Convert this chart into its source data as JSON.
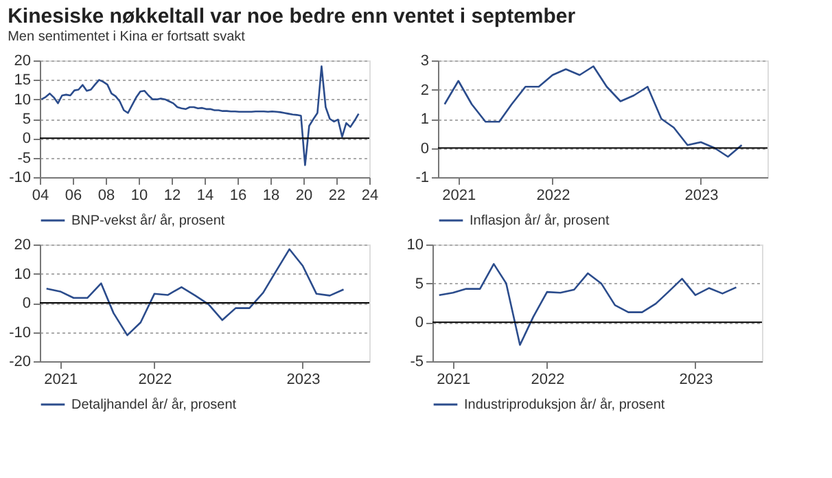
{
  "chart_data": [
    {
      "type": "line",
      "title": "Kinesiske nøkkeltall var noe bedre enn ventet i september",
      "subtitle": "Men sentimentet i Kina er fortsatt svakt",
      "x": [
        2004.1,
        2004.35,
        2004.6,
        2004.85,
        2005.1,
        2005.35,
        2005.6,
        2005.85,
        2006.1,
        2006.35,
        2006.6,
        2006.85,
        2007.1,
        2007.35,
        2007.6,
        2007.85,
        2008.1,
        2008.35,
        2008.6,
        2008.85,
        2009.1,
        2009.35,
        2009.6,
        2009.85,
        2010.1,
        2010.35,
        2010.6,
        2010.85,
        2011.1,
        2011.35,
        2011.6,
        2011.85,
        2012.1,
        2012.35,
        2012.6,
        2012.85,
        2013.1,
        2013.35,
        2013.6,
        2013.85,
        2014.1,
        2014.35,
        2014.6,
        2014.85,
        2015.1,
        2015.35,
        2015.6,
        2015.85,
        2016.1,
        2016.35,
        2016.6,
        2016.85,
        2017.1,
        2017.35,
        2017.6,
        2017.85,
        2018.1,
        2018.35,
        2018.6,
        2018.85,
        2019.1,
        2019.35,
        2019.6,
        2019.85,
        2020.1,
        2020.35,
        2020.6,
        2020.85,
        2021.1,
        2021.35,
        2021.6,
        2021.85,
        2022.1,
        2022.35,
        2022.6,
        2022.85,
        2023.1,
        2023.35
      ],
      "series": [
        {
          "name": "BNP-vekst år/ år, prosent",
          "color": "#2b4c8c",
          "values": [
            10.0,
            10.6,
            11.5,
            10.5,
            9.0,
            11.0,
            11.2,
            11.0,
            12.3,
            12.5,
            13.7,
            12.2,
            12.5,
            13.8,
            15.0,
            14.5,
            13.8,
            11.5,
            10.8,
            9.5,
            7.2,
            6.5,
            8.5,
            10.5,
            12.0,
            12.2,
            11.0,
            10.0,
            10.0,
            10.2,
            10.0,
            9.5,
            9.0,
            8.0,
            7.7,
            7.5,
            8.0,
            8.0,
            7.7,
            7.8,
            7.5,
            7.5,
            7.2,
            7.2,
            7.0,
            7.0,
            6.9,
            6.9,
            6.8,
            6.8,
            6.8,
            6.8,
            6.9,
            6.9,
            6.9,
            6.8,
            6.9,
            6.8,
            6.7,
            6.5,
            6.3,
            6.1,
            6.0,
            5.8,
            -6.9,
            3.2,
            4.9,
            6.5,
            18.5,
            8.0,
            5.0,
            4.3,
            4.8,
            0.4,
            3.9,
            2.9,
            4.5,
            6.3
          ]
        }
      ],
      "xlim": [
        2004,
        2024
      ],
      "xticks": [
        {
          "value": 2004,
          "label": "04"
        },
        {
          "value": 2006,
          "label": "06"
        },
        {
          "value": 2008,
          "label": "08"
        },
        {
          "value": 2010,
          "label": "10"
        },
        {
          "value": 2012,
          "label": "12"
        },
        {
          "value": 2014,
          "label": "14"
        },
        {
          "value": 2016,
          "label": "16"
        },
        {
          "value": 2018,
          "label": "18"
        },
        {
          "value": 2020,
          "label": "20"
        },
        {
          "value": 2022,
          "label": "22"
        },
        {
          "value": 2024,
          "label": "24"
        }
      ],
      "ylim": [
        -10,
        20
      ],
      "yticks": [
        -10,
        -5,
        0,
        5,
        10,
        15,
        20
      ],
      "grid": "y",
      "legend": "bottom",
      "line_style": "solid",
      "ref_lines": [
        {
          "axis": "y",
          "value": 0,
          "color": "#000000"
        }
      ]
    },
    {
      "type": "line",
      "x": [
        "2021-10",
        "2021-11",
        "2021-12",
        "2022-01",
        "2022-02",
        "2022-03",
        "2022-04",
        "2022-05",
        "2022-06",
        "2022-07",
        "2022-08",
        "2022-09",
        "2022-10",
        "2022-11",
        "2022-12",
        "2023-01",
        "2023-02",
        "2023-03",
        "2023-04",
        "2023-05",
        "2023-06",
        "2023-07",
        "2023-08"
      ],
      "series": [
        {
          "name": "Inflasjon år/ år, prosent",
          "color": "#2b4c8c",
          "values": [
            1.5,
            2.3,
            1.5,
            0.9,
            0.9,
            1.5,
            2.1,
            2.1,
            2.5,
            2.7,
            2.5,
            2.8,
            2.1,
            1.6,
            1.8,
            2.1,
            1.0,
            0.7,
            0.1,
            0.2,
            0.0,
            -0.3,
            0.1
          ]
        }
      ],
      "xlim": [
        "2021-09-16",
        "2023-09-28"
      ],
      "xticks": [
        {
          "value": "2021-11",
          "label": "2021"
        },
        {
          "value": "2022-06",
          "label": "2022"
        },
        {
          "value": "2023-05",
          "label": "2023"
        }
      ],
      "ylim": [
        -1,
        3
      ],
      "yticks": [
        -1,
        0,
        1,
        2,
        3
      ],
      "grid": "y",
      "legend": "bottom",
      "line_style": "solid",
      "ref_lines": [
        {
          "axis": "y",
          "value": 0,
          "color": "#000000"
        }
      ]
    },
    {
      "type": "line",
      "x": [
        "2021-10",
        "2021-11",
        "2021-12",
        "2022-01",
        "2022-02",
        "2022-03",
        "2022-04",
        "2022-05",
        "2022-06",
        "2022-07",
        "2022-08",
        "2022-09",
        "2022-10",
        "2022-11",
        "2022-12",
        "2023-01",
        "2023-02",
        "2023-03",
        "2023-04",
        "2023-05",
        "2023-06",
        "2023-07",
        "2023-08"
      ],
      "series": [
        {
          "name": "Detaljhandel år/ år, prosent",
          "color": "#2b4c8c",
          "values": [
            4.9,
            3.9,
            1.7,
            1.7,
            6.7,
            -3.5,
            -11.1,
            -6.7,
            3.1,
            2.7,
            5.4,
            2.5,
            -0.5,
            -5.9,
            -1.8,
            -1.8,
            3.5,
            10.6,
            18.4,
            12.7,
            3.1,
            2.5,
            4.6
          ]
        }
      ],
      "xlim": [
        "2021-09-16",
        "2023-09-28"
      ],
      "xticks": [
        {
          "value": "2021-11",
          "label": "2021"
        },
        {
          "value": "2022-06",
          "label": "2022"
        },
        {
          "value": "2023-05",
          "label": "2023"
        }
      ],
      "ylim": [
        -20,
        20
      ],
      "yticks": [
        -20,
        -10,
        0,
        10,
        20
      ],
      "grid": "y",
      "legend": "bottom",
      "line_style": "solid",
      "ref_lines": [
        {
          "axis": "y",
          "value": 0,
          "color": "#000000"
        }
      ]
    },
    {
      "type": "line",
      "x": [
        "2021-10",
        "2021-11",
        "2021-12",
        "2022-01",
        "2022-02",
        "2022-03",
        "2022-04",
        "2022-05",
        "2022-06",
        "2022-07",
        "2022-08",
        "2022-09",
        "2022-10",
        "2022-11",
        "2022-12",
        "2023-01",
        "2023-02",
        "2023-03",
        "2023-04",
        "2023-05",
        "2023-06",
        "2023-07",
        "2023-08"
      ],
      "series": [
        {
          "name": "Industriproduksjon år/ år, prosent",
          "color": "#2b4c8c",
          "values": [
            3.5,
            3.8,
            4.3,
            4.3,
            7.5,
            5.0,
            -2.9,
            0.7,
            3.9,
            3.8,
            4.2,
            6.3,
            5.0,
            2.2,
            1.3,
            1.3,
            2.4,
            3.9,
            5.6,
            3.5,
            4.4,
            3.7,
            4.5
          ]
        }
      ],
      "xlim": [
        "2021-09-16",
        "2023-09-28"
      ],
      "xticks": [
        {
          "value": "2021-11",
          "label": "2021"
        },
        {
          "value": "2022-06",
          "label": "2022"
        },
        {
          "value": "2023-05",
          "label": "2023"
        }
      ],
      "ylim": [
        -5,
        10
      ],
      "yticks": [
        -5,
        0,
        5,
        10
      ],
      "grid": "y",
      "legend": "bottom",
      "line_style": "solid",
      "ref_lines": [
        {
          "axis": "y",
          "value": 0,
          "color": "#000000"
        }
      ]
    }
  ]
}
